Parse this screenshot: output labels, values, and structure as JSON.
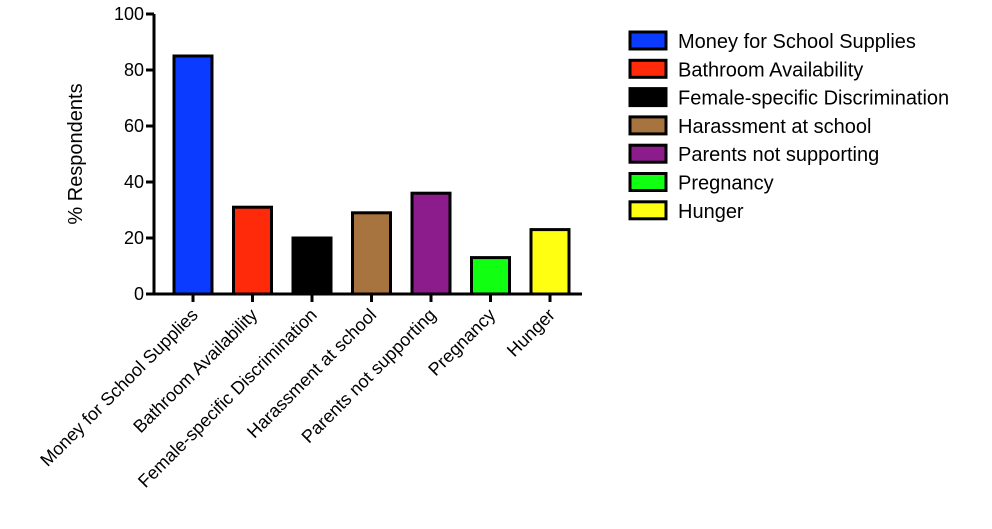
{
  "chart_data": {
    "type": "bar",
    "categories": [
      "Money for School Supplies",
      "Bathroom Availability",
      "Female-specific Discrimination",
      "Harassment at school",
      "Parents not supporting",
      "Pregnancy",
      "Hunger"
    ],
    "values": [
      85,
      31,
      20,
      29,
      36,
      13,
      23
    ],
    "colors": [
      "#0b3bff",
      "#ff2a0a",
      "#000000",
      "#a77440",
      "#8c1c8c",
      "#11ff11",
      "#ffff11"
    ],
    "title": "",
    "xlabel": "",
    "ylabel": "% Respondents",
    "ylim": [
      0,
      100
    ],
    "yticks": [
      "0",
      "20",
      "40",
      "60",
      "80",
      "100"
    ],
    "grid": false,
    "legend_position": "top-right",
    "legend": [
      "Money for School Supplies",
      "Bathroom Availability",
      "Female-specific Discrimination",
      "Harassment at school",
      "Parents not supporting",
      "Pregnancy",
      "Hunger"
    ]
  }
}
